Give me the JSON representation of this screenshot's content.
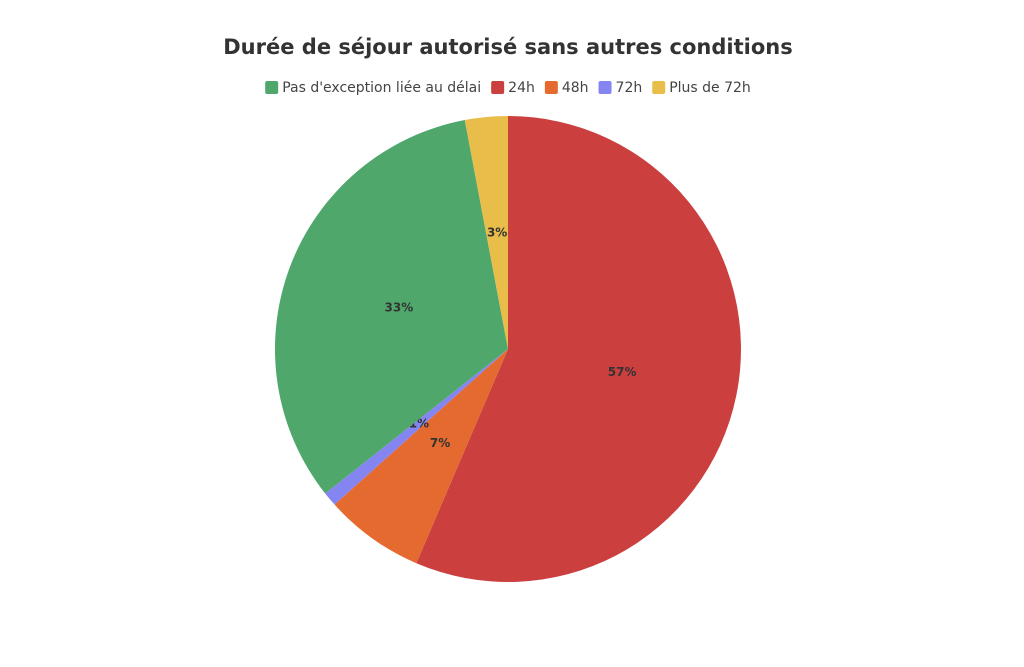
{
  "chart_data": {
    "type": "pie",
    "title": "Durée de séjour autorisé sans autres conditions",
    "categories": [
      "Pas d'exception liée au délai",
      "24h",
      "48h",
      "72h",
      "Plus de 72h"
    ],
    "values": [
      33,
      57,
      7,
      1,
      3
    ],
    "value_labels": [
      "33%",
      "57%",
      "7%",
      "1%",
      "3%"
    ],
    "colors": [
      "#4fa76b",
      "#cb3f3f",
      "#e56a2f",
      "#8585f2",
      "#e8bd4a"
    ]
  }
}
